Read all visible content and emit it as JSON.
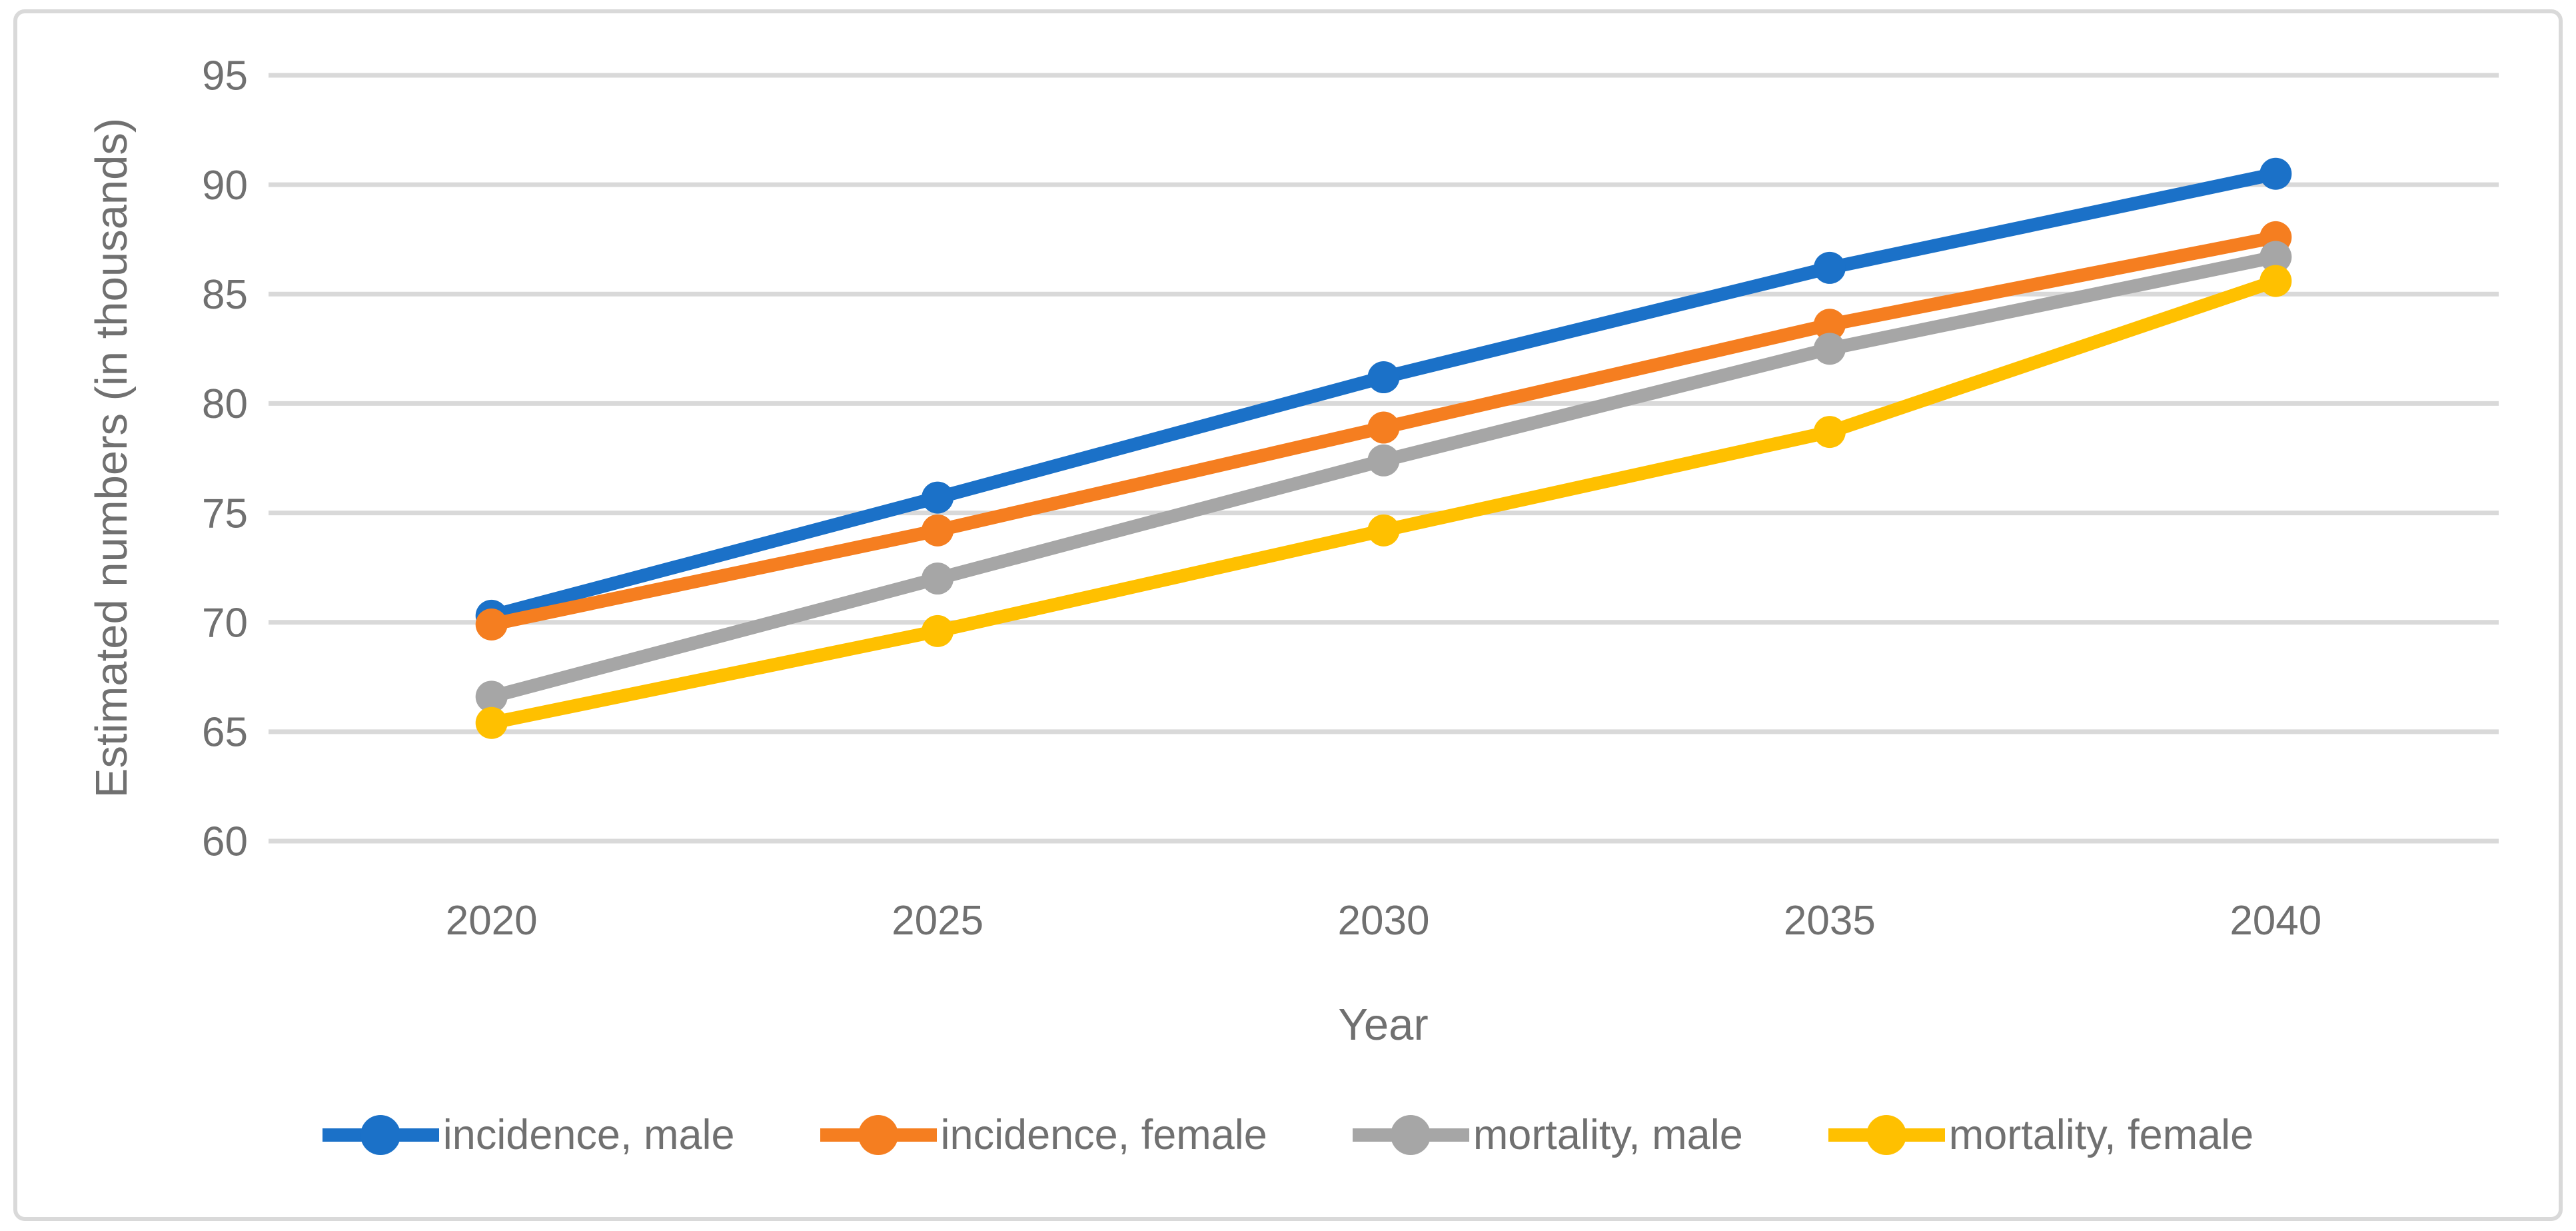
{
  "figure": {
    "background": "#FFFFFF",
    "border_color": "#D9D9D9"
  },
  "chart_data": {
    "type": "line",
    "title": "",
    "xlabel": "Year",
    "ylabel": "Estimated numbers (in thousands)",
    "categories": [
      "2020",
      "2025",
      "2030",
      "2035",
      "2040"
    ],
    "series": [
      {
        "name": "incidence, male",
        "color": "#1B71C8",
        "values": [
          70.3,
          75.7,
          81.2,
          86.2,
          90.5
        ]
      },
      {
        "name": "incidence, female",
        "color": "#F57E20",
        "values": [
          69.9,
          74.2,
          78.9,
          83.6,
          87.6
        ]
      },
      {
        "name": "mortality, male",
        "color": "#A6A6A6",
        "values": [
          66.6,
          72.0,
          77.4,
          82.5,
          86.7
        ]
      },
      {
        "name": "mortality, female",
        "color": "#FFC000",
        "values": [
          65.4,
          69.6,
          74.2,
          78.7,
          85.6
        ]
      }
    ],
    "ylim": [
      60,
      95
    ],
    "yticks": [
      60,
      65,
      70,
      75,
      80,
      85,
      90,
      95
    ],
    "grid": true,
    "gridline_color": "#D9D9D9",
    "axis_text_color": "#707070",
    "legend_position": "bottom",
    "marker": "circle"
  }
}
